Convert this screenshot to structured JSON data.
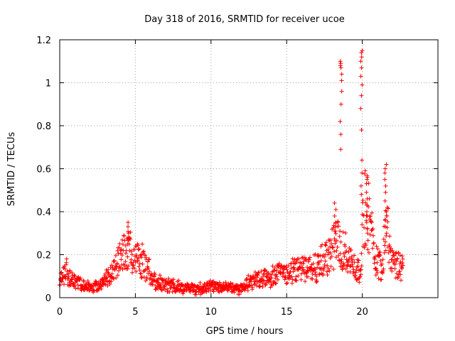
{
  "chart_data": {
    "type": "scatter",
    "title": "Day 318 of 2016, SRMTID for receiver ucoe",
    "xlabel": "GPS time / hours",
    "ylabel": "SRMTID / TECUs",
    "xlim": [
      0,
      25
    ],
    "ylim": [
      0,
      1.2
    ],
    "x_ticks": [
      0,
      5,
      10,
      15,
      20
    ],
    "x_tick_labels": [
      "0",
      "5",
      "10",
      "15",
      "20"
    ],
    "y_ticks": [
      0,
      0.2,
      0.4,
      0.6,
      0.8,
      1,
      1.2
    ],
    "y_tick_labels": [
      "0",
      "0.2",
      "0.4",
      "0.6",
      "0.8",
      "1",
      "1.2"
    ],
    "grid": true,
    "marker": "plus",
    "marker_color": "#ff0000",
    "series": [
      {
        "name": "SRMTID",
        "color": "#ff0000",
        "profile": [
          [
            0.0,
            0.07
          ],
          [
            0.3,
            0.1
          ],
          [
            0.5,
            0.13
          ],
          [
            0.8,
            0.09
          ],
          [
            1.2,
            0.07
          ],
          [
            1.8,
            0.05
          ],
          [
            2.3,
            0.05
          ],
          [
            2.8,
            0.07
          ],
          [
            3.3,
            0.11
          ],
          [
            3.8,
            0.15
          ],
          [
            4.2,
            0.2
          ],
          [
            4.6,
            0.22
          ],
          [
            5.0,
            0.2
          ],
          [
            5.5,
            0.17
          ],
          [
            5.9,
            0.13
          ],
          [
            6.2,
            0.08
          ],
          [
            7.0,
            0.06
          ],
          [
            8.0,
            0.05
          ],
          [
            9.0,
            0.04
          ],
          [
            10.0,
            0.05
          ],
          [
            11.0,
            0.05
          ],
          [
            12.0,
            0.04
          ],
          [
            12.5,
            0.07
          ],
          [
            13.0,
            0.09
          ],
          [
            14.0,
            0.1
          ],
          [
            15.0,
            0.12
          ],
          [
            16.0,
            0.13
          ],
          [
            17.0,
            0.14
          ],
          [
            17.8,
            0.2
          ],
          [
            18.3,
            0.26
          ],
          [
            18.8,
            0.22
          ],
          [
            19.3,
            0.16
          ],
          [
            19.8,
            0.12
          ],
          [
            20.2,
            0.45
          ],
          [
            20.5,
            0.35
          ],
          [
            20.9,
            0.18
          ],
          [
            21.3,
            0.15
          ],
          [
            21.6,
            0.4
          ],
          [
            21.9,
            0.16
          ],
          [
            22.3,
            0.15
          ],
          [
            22.7,
            0.14
          ]
        ],
        "spread": 0.45,
        "sample_step_hours": 0.02,
        "x_range": [
          0,
          22.7
        ],
        "spikes": [
          {
            "x": 4.55,
            "values": [
              0.33,
              0.35,
              0.3,
              0.28,
              0.27,
              0.25
            ]
          },
          {
            "x": 18.6,
            "values": [
              0.69,
              0.76,
              0.82,
              0.9,
              0.96,
              1.01,
              1.04,
              1.07,
              1.09,
              1.1,
              1.08
            ]
          },
          {
            "x": 19.95,
            "values": [
              0.64,
              0.78,
              0.88,
              0.94,
              0.99,
              1.03,
              1.07,
              1.1,
              1.12,
              1.14,
              1.15,
              0.58,
              0.52,
              0.48
            ]
          },
          {
            "x": 20.3,
            "values": [
              0.56,
              0.55,
              0.53,
              0.49,
              0.46,
              0.43,
              0.4,
              0.38,
              0.35,
              0.32,
              0.3
            ]
          },
          {
            "x": 21.55,
            "values": [
              0.62,
              0.6,
              0.58,
              0.55,
              0.52,
              0.49,
              0.45,
              0.4,
              0.36,
              0.33,
              0.3
            ]
          },
          {
            "x": 18.2,
            "values": [
              0.44,
              0.41,
              0.38,
              0.35,
              0.33,
              0.31
            ]
          }
        ]
      }
    ]
  }
}
